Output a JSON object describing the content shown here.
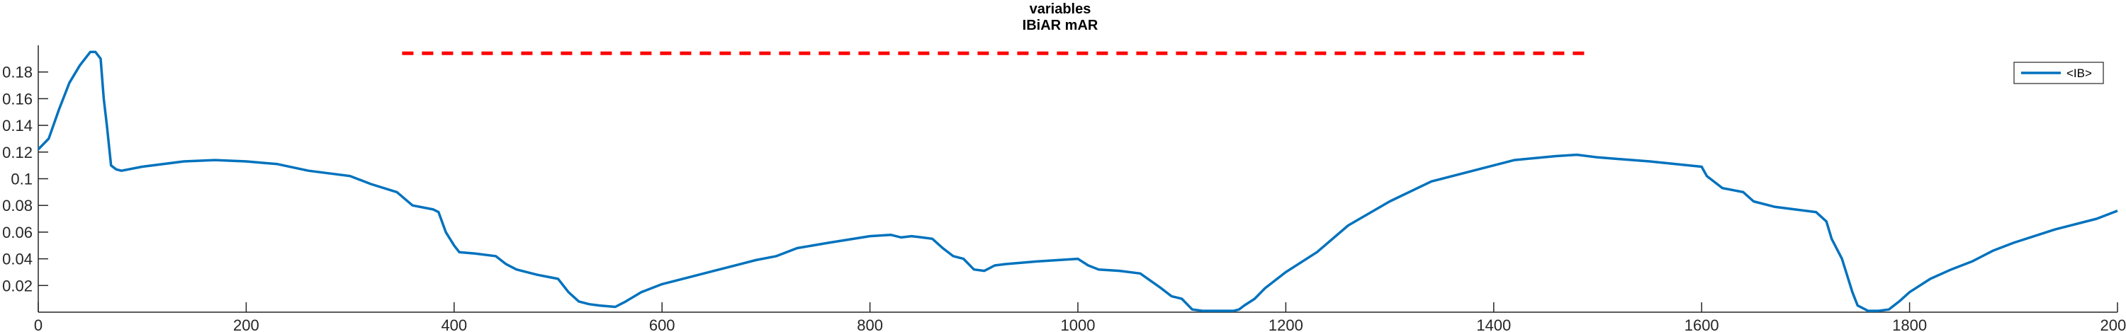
{
  "chart_data": {
    "type": "line",
    "title": "variables",
    "subtitle": "IBiAR mAR",
    "xlabel": "",
    "ylabel": "",
    "xlim": [
      0,
      2000
    ],
    "ylim": [
      0,
      0.2
    ],
    "xticks": [
      0,
      200,
      400,
      600,
      800,
      1000,
      1200,
      1400,
      1600,
      1800,
      2000
    ],
    "yticks": [
      0.02,
      0.04,
      0.06,
      0.08,
      0.1,
      0.12,
      0.14,
      0.16,
      0.18
    ],
    "legend_position": "top-right",
    "grid": false,
    "series": [
      {
        "name": "<IB>",
        "color": "#0072BD",
        "x": [
          0,
          10,
          20,
          30,
          40,
          50,
          55,
          60,
          63,
          66,
          70,
          75,
          80,
          100,
          140,
          170,
          200,
          230,
          260,
          300,
          320,
          345,
          360,
          380,
          385,
          392,
          400,
          405,
          420,
          440,
          450,
          460,
          480,
          500,
          510,
          520,
          530,
          540,
          555,
          565,
          580,
          600,
          620,
          650,
          680,
          690,
          710,
          730,
          760,
          800,
          820,
          830,
          840,
          850,
          860,
          870,
          880,
          890,
          900,
          910,
          920,
          930,
          960,
          1000,
          1010,
          1020,
          1040,
          1060,
          1080,
          1090,
          1100,
          1110,
          1120,
          1140,
          1150,
          1155,
          1160,
          1170,
          1180,
          1200,
          1230,
          1260,
          1300,
          1340,
          1380,
          1420,
          1460,
          1480,
          1500,
          1550,
          1600,
          1605,
          1620,
          1640,
          1650,
          1670,
          1690,
          1710,
          1720,
          1725,
          1735,
          1745,
          1750,
          1760,
          1770,
          1780,
          1790,
          1800,
          1820,
          1840,
          1860,
          1880,
          1900,
          1940,
          1980,
          2000
        ],
        "y": [
          0.122,
          0.13,
          0.152,
          0.172,
          0.185,
          0.195,
          0.195,
          0.19,
          0.16,
          0.14,
          0.11,
          0.107,
          0.106,
          0.109,
          0.113,
          0.114,
          0.113,
          0.111,
          0.106,
          0.102,
          0.096,
          0.09,
          0.08,
          0.077,
          0.075,
          0.06,
          0.05,
          0.045,
          0.044,
          0.042,
          0.036,
          0.032,
          0.028,
          0.025,
          0.015,
          0.008,
          0.006,
          0.005,
          0.004,
          0.008,
          0.015,
          0.021,
          0.025,
          0.031,
          0.037,
          0.039,
          0.042,
          0.048,
          0.052,
          0.057,
          0.058,
          0.056,
          0.057,
          0.056,
          0.055,
          0.048,
          0.042,
          0.04,
          0.032,
          0.031,
          0.035,
          0.036,
          0.038,
          0.04,
          0.035,
          0.032,
          0.031,
          0.029,
          0.018,
          0.012,
          0.01,
          0.002,
          0.001,
          0.001,
          0.001,
          0.002,
          0.005,
          0.01,
          0.018,
          0.03,
          0.045,
          0.065,
          0.083,
          0.098,
          0.106,
          0.114,
          0.117,
          0.118,
          0.116,
          0.113,
          0.109,
          0.102,
          0.093,
          0.09,
          0.083,
          0.079,
          0.077,
          0.075,
          0.068,
          0.055,
          0.04,
          0.015,
          0.005,
          0.001,
          0.001,
          0.002,
          0.008,
          0.015,
          0.025,
          0.032,
          0.038,
          0.046,
          0.052,
          0.062,
          0.07,
          0.076
        ]
      },
      {
        "name": "",
        "color": "#FF0000",
        "style": "dashed",
        "x": [
          350,
          1490
        ],
        "y": [
          0.194,
          0.194
        ]
      }
    ]
  }
}
